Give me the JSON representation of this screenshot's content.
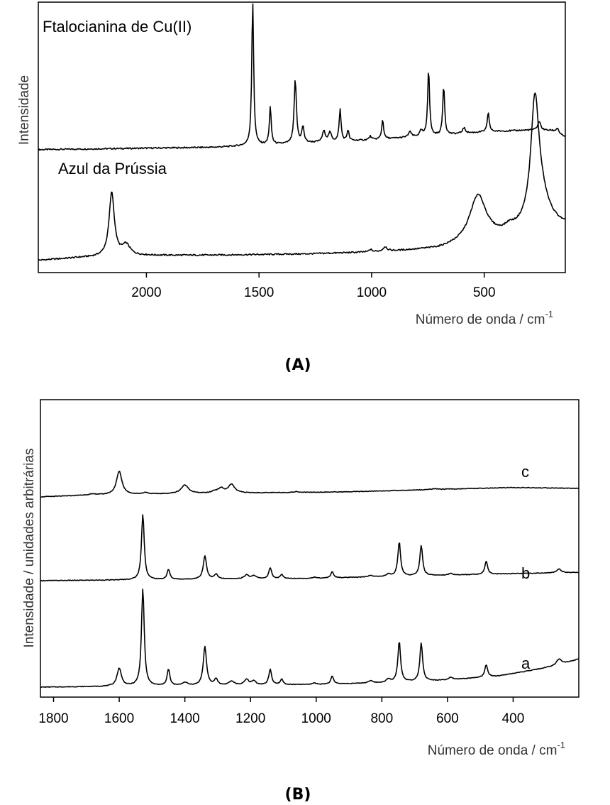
{
  "chart_data": [
    {
      "panel": "(A)",
      "type": "line",
      "xlabel": "Número de onda / cm",
      "xlabel_sup": "-1",
      "ylabel": "Intensidade",
      "xlim": [
        2480,
        140
      ],
      "x_reversed": true,
      "xticks": [
        2000,
        1500,
        1000,
        500
      ],
      "yticks": [],
      "grid": false,
      "series": [
        {
          "name": "Ftalocianina de Cu(II)",
          "baseline_points": [
            [
              2480,
              0.5
            ],
            [
              1700,
              1.8
            ],
            [
              1400,
              3.5
            ],
            [
              1000,
              6.0
            ],
            [
              700,
              8.5
            ],
            [
              500,
              10.5
            ],
            [
              300,
              11.5
            ],
            [
              200,
              11.2
            ],
            [
              150,
              8.0
            ]
          ],
          "peaks": [
            {
              "x": 1528,
              "h": 81,
              "w": 5
            },
            {
              "x": 1450,
              "h": 21,
              "w": 5
            },
            {
              "x": 1339,
              "h": 36,
              "w": 6
            },
            {
              "x": 1305,
              "h": 9,
              "w": 6
            },
            {
              "x": 1212,
              "h": 6,
              "w": 8
            },
            {
              "x": 1185,
              "h": 5,
              "w": 8
            },
            {
              "x": 1140,
              "h": 18,
              "w": 5
            },
            {
              "x": 1105,
              "h": 6,
              "w": 5
            },
            {
              "x": 1006,
              "h": 2,
              "w": 6
            },
            {
              "x": 951,
              "h": 11,
              "w": 5
            },
            {
              "x": 830,
              "h": 3,
              "w": 8
            },
            {
              "x": 780,
              "h": 3,
              "w": 8
            },
            {
              "x": 747,
              "h": 38,
              "w": 5
            },
            {
              "x": 680,
              "h": 28,
              "w": 5
            },
            {
              "x": 590,
              "h": 3,
              "w": 8
            },
            {
              "x": 482,
              "h": 11,
              "w": 5
            },
            {
              "x": 256,
              "h": 5,
              "w": 8
            },
            {
              "x": 175,
              "h": 3,
              "w": 8
            }
          ]
        },
        {
          "name": "Azul da Prússia",
          "baseline_points": [
            [
              2480,
              0.5
            ],
            [
              2300,
              2.0
            ],
            [
              2000,
              3.2
            ],
            [
              1700,
              3.4
            ],
            [
              1300,
              4.0
            ],
            [
              1000,
              5.0
            ],
            [
              700,
              6.8
            ],
            [
              600,
              9.0
            ],
            [
              400,
              14.0
            ],
            [
              250,
              22.0
            ],
            [
              150,
              20.0
            ]
          ],
          "peaks": [
            {
              "x": 2154,
              "h": 36,
              "w": 14
            },
            {
              "x": 2090,
              "h": 6,
              "w": 22
            },
            {
              "x": 1005,
              "h": 1.3,
              "w": 8
            },
            {
              "x": 940,
              "h": 2.5,
              "w": 10
            },
            {
              "x": 528,
              "h": 26,
              "w": 45
            },
            {
              "x": 390,
              "h": 3,
              "w": 25
            },
            {
              "x": 275,
              "h": 67,
              "w": 22
            },
            {
              "x": 245,
              "h": 10,
              "w": 40
            }
          ]
        }
      ]
    },
    {
      "panel": "(B)",
      "type": "line",
      "xlabel": "Número de onda / cm",
      "xlabel_sup": "-1",
      "ylabel": "Intensidade / unidades arbitrárias",
      "xlim": [
        1840,
        200
      ],
      "x_reversed": true,
      "xticks": [
        1800,
        1600,
        1400,
        1200,
        1000,
        800,
        600,
        400
      ],
      "yticks": [],
      "grid": false,
      "series": [
        {
          "name": "c",
          "baseline_points": [
            [
              1840,
              0.0
            ],
            [
              1700,
              2.0
            ],
            [
              1500,
              3.5
            ],
            [
              1200,
              5.0
            ],
            [
              900,
              6.5
            ],
            [
              600,
              10.0
            ],
            [
              400,
              12.0
            ],
            [
              300,
              11.5
            ],
            [
              200,
              11.0
            ]
          ],
          "peaks": [
            {
              "x": 1680,
              "h": 1.2,
              "w": 20
            },
            {
              "x": 1600,
              "h": 30,
              "w": 10
            },
            {
              "x": 1520,
              "h": 2.0,
              "w": 10
            },
            {
              "x": 1400,
              "h": 11,
              "w": 14
            },
            {
              "x": 1310,
              "h": 2.5,
              "w": 10
            },
            {
              "x": 1290,
              "h": 6.0,
              "w": 10
            },
            {
              "x": 1258,
              "h": 11,
              "w": 12
            },
            {
              "x": 1060,
              "h": 1.0,
              "w": 10
            },
            {
              "x": 640,
              "h": 1.0,
              "w": 12
            }
          ]
        },
        {
          "name": "b",
          "baseline_points": [
            [
              1840,
              0.0
            ],
            [
              1550,
              1.0
            ],
            [
              1300,
              2.0
            ],
            [
              1000,
              3.0
            ],
            [
              800,
              5.0
            ],
            [
              600,
              7.0
            ],
            [
              400,
              9.0
            ],
            [
              200,
              10.5
            ]
          ],
          "peaks": [
            {
              "x": 1528,
              "h": 84,
              "w": 5
            },
            {
              "x": 1450,
              "h": 13,
              "w": 5
            },
            {
              "x": 1339,
              "h": 30,
              "w": 6
            },
            {
              "x": 1305,
              "h": 6,
              "w": 6
            },
            {
              "x": 1212,
              "h": 5,
              "w": 8
            },
            {
              "x": 1190,
              "h": 4,
              "w": 8
            },
            {
              "x": 1140,
              "h": 14,
              "w": 5
            },
            {
              "x": 1105,
              "h": 5,
              "w": 5
            },
            {
              "x": 1006,
              "h": 1.5,
              "w": 6
            },
            {
              "x": 951,
              "h": 8,
              "w": 5
            },
            {
              "x": 835,
              "h": 2,
              "w": 8
            },
            {
              "x": 780,
              "h": 3,
              "w": 8
            },
            {
              "x": 747,
              "h": 44,
              "w": 5
            },
            {
              "x": 680,
              "h": 39,
              "w": 5
            },
            {
              "x": 590,
              "h": 2,
              "w": 8
            },
            {
              "x": 482,
              "h": 17,
              "w": 5
            },
            {
              "x": 260,
              "h": 5,
              "w": 8
            }
          ]
        },
        {
          "name": "a",
          "baseline_points": [
            [
              1840,
              0.0
            ],
            [
              1600,
              1.0
            ],
            [
              1300,
              2.0
            ],
            [
              1000,
              3.5
            ],
            [
              800,
              5.5
            ],
            [
              600,
              9.0
            ],
            [
              450,
              14.0
            ],
            [
              350,
              21.0
            ],
            [
              260,
              28.0
            ],
            [
              200,
              36.0
            ]
          ],
          "peaks": [
            {
              "x": 1600,
              "h": 23,
              "w": 8
            },
            {
              "x": 1528,
              "h": 125,
              "w": 5
            },
            {
              "x": 1450,
              "h": 21,
              "w": 5
            },
            {
              "x": 1400,
              "h": 4,
              "w": 10
            },
            {
              "x": 1339,
              "h": 50,
              "w": 6
            },
            {
              "x": 1305,
              "h": 8,
              "w": 6
            },
            {
              "x": 1258,
              "h": 5,
              "w": 10
            },
            {
              "x": 1212,
              "h": 7,
              "w": 8
            },
            {
              "x": 1190,
              "h": 5,
              "w": 8
            },
            {
              "x": 1140,
              "h": 20,
              "w": 5
            },
            {
              "x": 1105,
              "h": 7,
              "w": 5
            },
            {
              "x": 1006,
              "h": 2,
              "w": 6
            },
            {
              "x": 951,
              "h": 10,
              "w": 5
            },
            {
              "x": 835,
              "h": 3,
              "w": 8
            },
            {
              "x": 780,
              "h": 4,
              "w": 8
            },
            {
              "x": 747,
              "h": 52,
              "w": 5
            },
            {
              "x": 680,
              "h": 49,
              "w": 5
            },
            {
              "x": 590,
              "h": 3,
              "w": 8
            },
            {
              "x": 482,
              "h": 16,
              "w": 5
            },
            {
              "x": 260,
              "h": 8,
              "w": 10
            }
          ]
        }
      ]
    }
  ]
}
